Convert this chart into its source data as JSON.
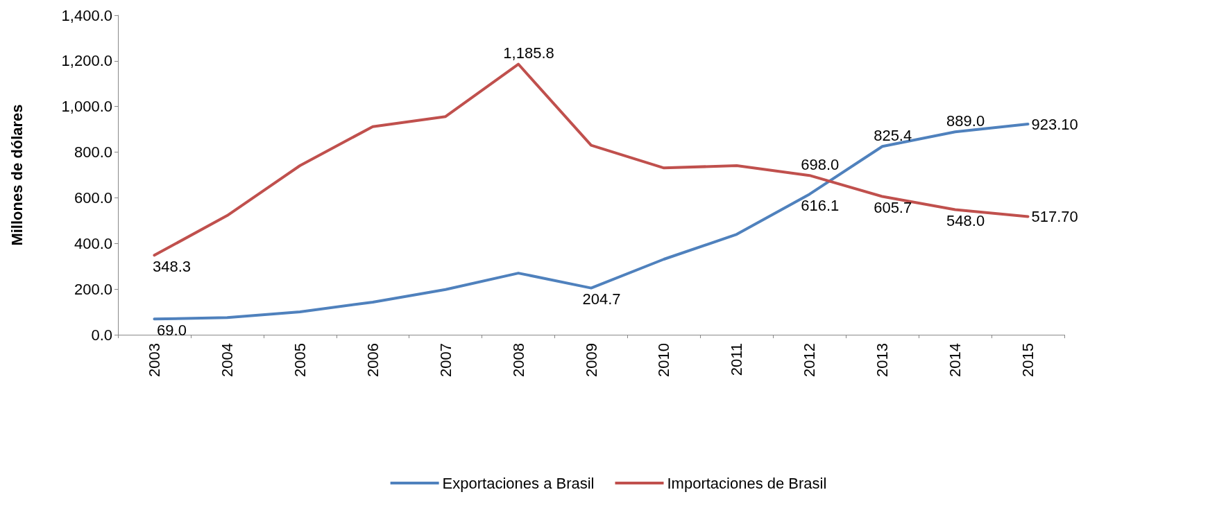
{
  "chart_data": {
    "type": "line",
    "ylabel": "Millones de dólares",
    "categories": [
      "2003",
      "2004",
      "2005",
      "2006",
      "2007",
      "2008",
      "2009",
      "2010",
      "2011",
      "2012",
      "2013",
      "2014",
      "2015"
    ],
    "series": [
      {
        "name": "Exportaciones a Brasil",
        "color": "#4f81bd",
        "values": [
          69.0,
          75,
          100,
          143,
          198,
          270,
          204.7,
          331,
          440,
          616.1,
          825.4,
          889.0,
          923.1
        ],
        "value_labels": [
          "69.0",
          null,
          null,
          null,
          null,
          null,
          "204.7",
          null,
          null,
          "616.1",
          "825.4",
          "889.0",
          "923.10"
        ]
      },
      {
        "name": "Importaciones de Brasil",
        "color": "#c0504d",
        "values": [
          348.3,
          522,
          741,
          912,
          956,
          1185.8,
          830,
          731,
          741,
          698.0,
          605.7,
          548.0,
          517.7
        ],
        "value_labels": [
          "348.3",
          null,
          null,
          null,
          null,
          "1,185.8",
          null,
          null,
          null,
          "698.0",
          "605.7",
          "548.0",
          "517.70"
        ]
      }
    ],
    "ylim": [
      0,
      1400
    ],
    "yticks": [
      {
        "value": 0,
        "label": "0.0"
      },
      {
        "value": 200,
        "label": "200.0"
      },
      {
        "value": 400,
        "label": "400.0"
      },
      {
        "value": 600,
        "label": "600.0"
      },
      {
        "value": 800,
        "label": "800.0"
      },
      {
        "value": 1000,
        "label": "1,000.0"
      },
      {
        "value": 1200,
        "label": "1,200.0"
      },
      {
        "value": 1400,
        "label": "1,400.0"
      }
    ],
    "grid": false,
    "legend": "bottom",
    "marker": "none",
    "line_style": "solid"
  }
}
